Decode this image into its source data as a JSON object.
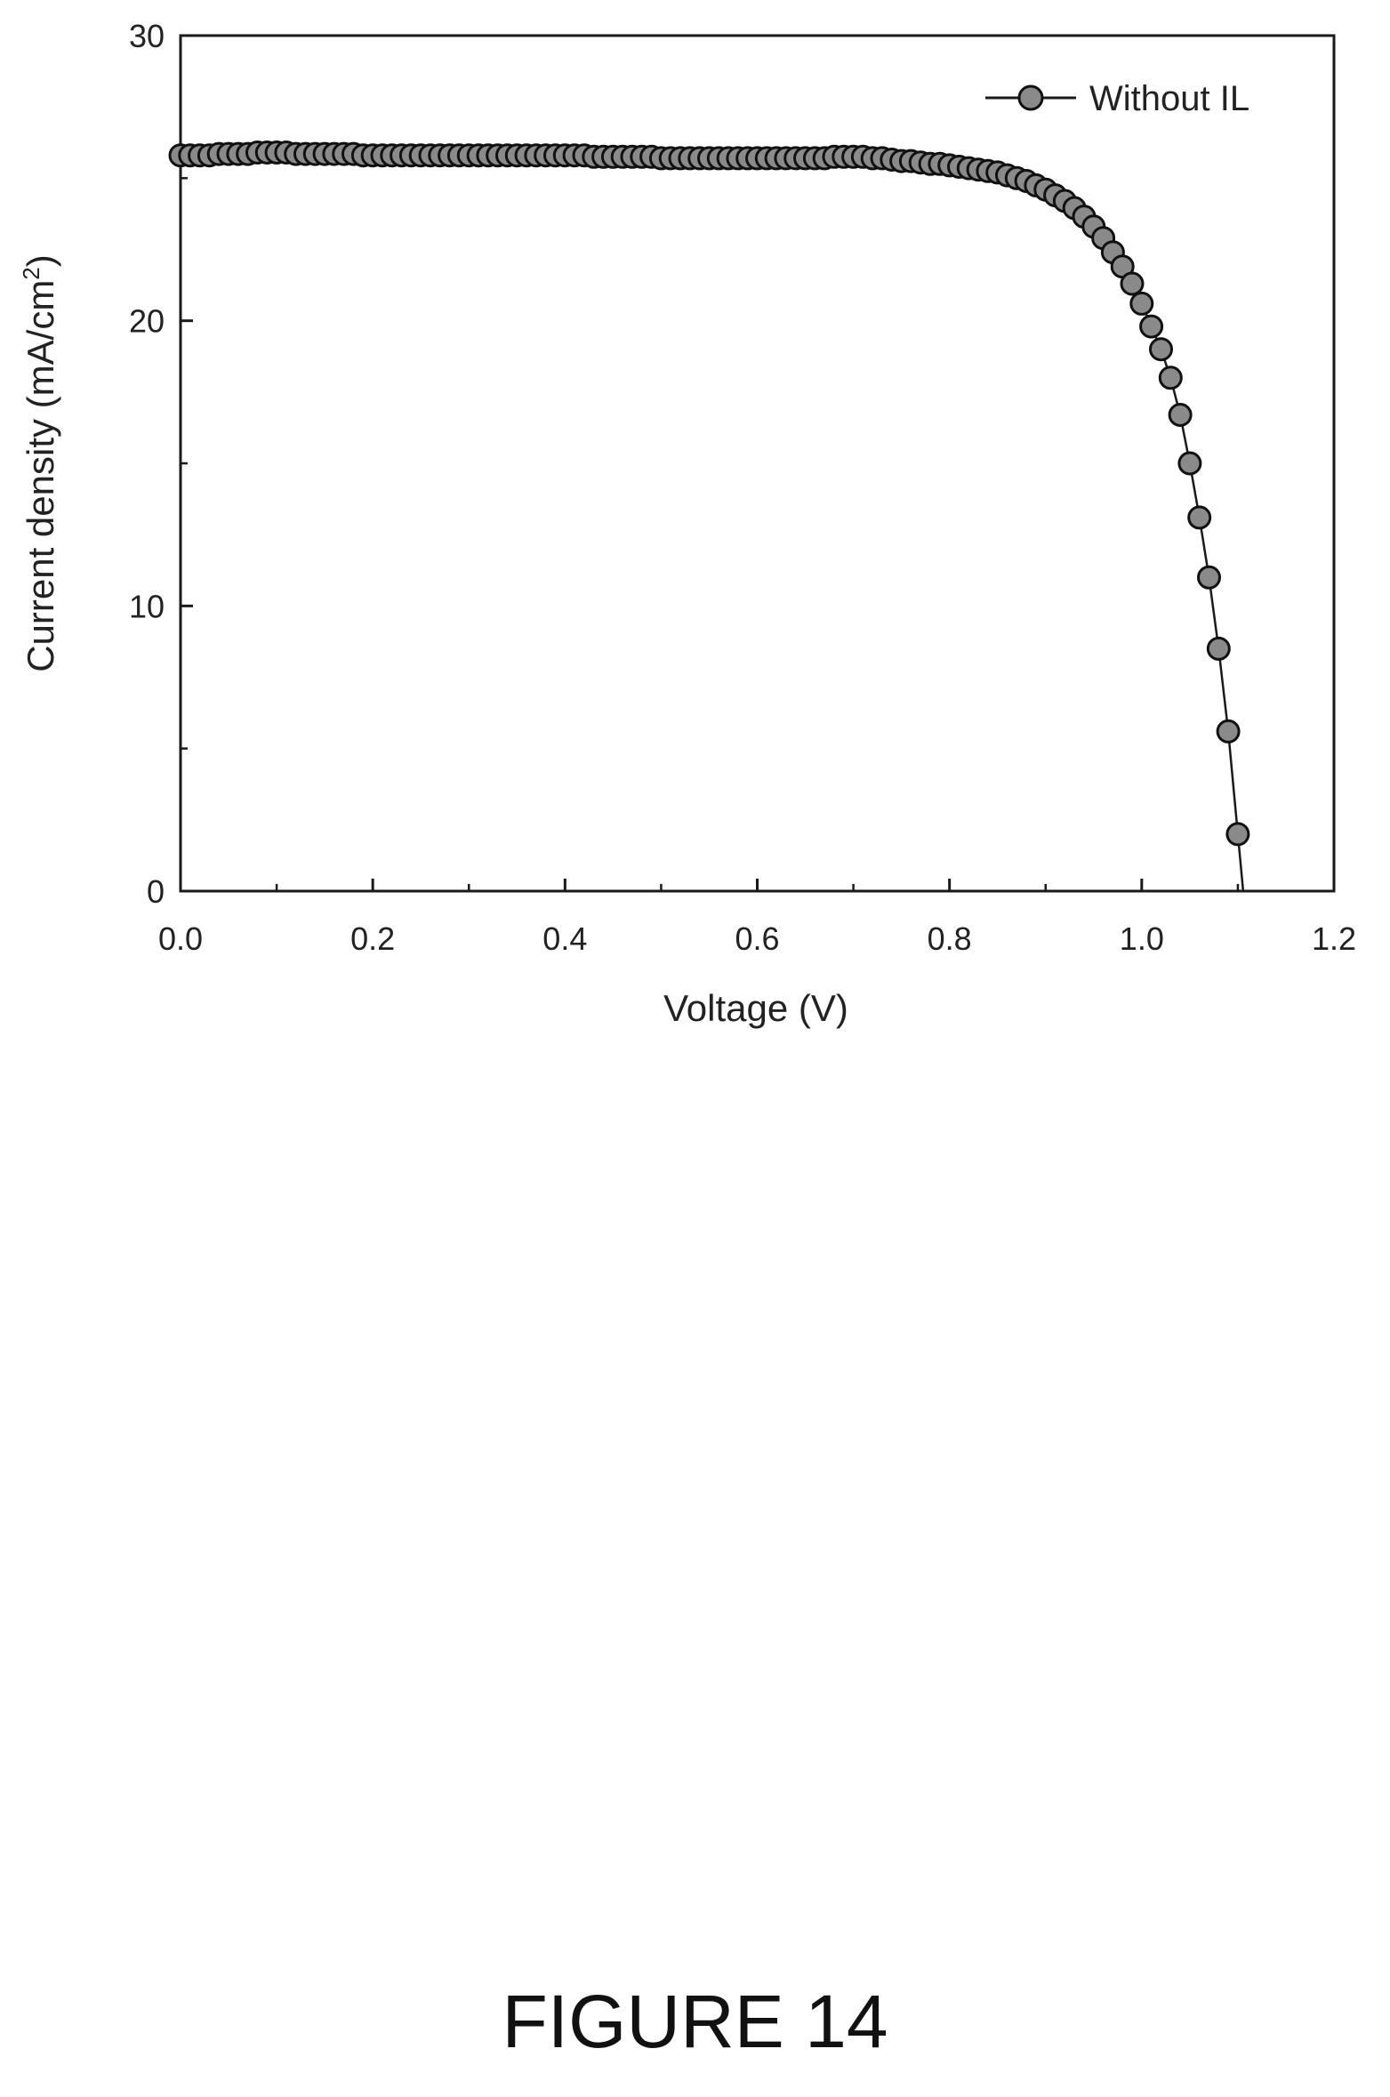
{
  "figure_label": "FIGURE 14",
  "chart_data": {
    "type": "scatter",
    "xlabel": "Voltage (V)",
    "ylabel": "Current density (mA/cm",
    "ylabel_sup": "2",
    "ylabel_close": ")",
    "xlim": [
      0,
      1.2
    ],
    "ylim": [
      0,
      30
    ],
    "xticks": [
      "0.0",
      "0.2",
      "0.4",
      "0.6",
      "0.8",
      "1.0",
      "1.2"
    ],
    "yticks": [
      "0",
      "10",
      "20",
      "30"
    ],
    "legend_position": "top-right",
    "grid": false,
    "series": [
      {
        "name": "Without IL",
        "marker": "circle",
        "line": true,
        "x": [
          0.0,
          0.01,
          0.02,
          0.03,
          0.04,
          0.05,
          0.06,
          0.07,
          0.08,
          0.09,
          0.1,
          0.11,
          0.12,
          0.13,
          0.14,
          0.15,
          0.16,
          0.17,
          0.18,
          0.19,
          0.2,
          0.21,
          0.22,
          0.23,
          0.24,
          0.25,
          0.26,
          0.27,
          0.28,
          0.29,
          0.3,
          0.31,
          0.32,
          0.33,
          0.34,
          0.35,
          0.36,
          0.37,
          0.38,
          0.39,
          0.4,
          0.41,
          0.42,
          0.43,
          0.44,
          0.45,
          0.46,
          0.47,
          0.48,
          0.49,
          0.5,
          0.51,
          0.52,
          0.53,
          0.54,
          0.55,
          0.56,
          0.57,
          0.58,
          0.59,
          0.6,
          0.61,
          0.62,
          0.63,
          0.64,
          0.65,
          0.66,
          0.67,
          0.68,
          0.69,
          0.7,
          0.71,
          0.72,
          0.73,
          0.74,
          0.75,
          0.76,
          0.77,
          0.78,
          0.79,
          0.8,
          0.81,
          0.82,
          0.83,
          0.84,
          0.85,
          0.86,
          0.87,
          0.88,
          0.89,
          0.9,
          0.91,
          0.92,
          0.93,
          0.94,
          0.95,
          0.96,
          0.97,
          0.98,
          0.99,
          1.0,
          1.01,
          1.02,
          1.03,
          1.04,
          1.05,
          1.06,
          1.07,
          1.08,
          1.09,
          1.1
        ],
        "y": [
          25.8,
          25.8,
          25.8,
          25.8,
          25.85,
          25.85,
          25.85,
          25.85,
          25.9,
          25.9,
          25.9,
          25.9,
          25.85,
          25.85,
          25.85,
          25.85,
          25.85,
          25.85,
          25.85,
          25.8,
          25.8,
          25.8,
          25.8,
          25.8,
          25.8,
          25.8,
          25.8,
          25.8,
          25.8,
          25.8,
          25.8,
          25.8,
          25.8,
          25.8,
          25.8,
          25.8,
          25.8,
          25.8,
          25.8,
          25.8,
          25.8,
          25.8,
          25.8,
          25.75,
          25.75,
          25.75,
          25.75,
          25.75,
          25.75,
          25.75,
          25.7,
          25.7,
          25.7,
          25.7,
          25.7,
          25.7,
          25.7,
          25.7,
          25.7,
          25.7,
          25.7,
          25.7,
          25.7,
          25.7,
          25.7,
          25.7,
          25.7,
          25.7,
          25.75,
          25.75,
          25.75,
          25.75,
          25.7,
          25.7,
          25.65,
          25.6,
          25.6,
          25.55,
          25.5,
          25.5,
          25.45,
          25.4,
          25.35,
          25.3,
          25.25,
          25.2,
          25.1,
          25.0,
          24.9,
          24.75,
          24.6,
          24.4,
          24.2,
          23.95,
          23.65,
          23.3,
          22.9,
          22.4,
          21.9,
          21.3,
          20.6,
          19.8,
          19.0,
          18.0,
          16.7,
          15.0,
          13.1,
          11.0,
          8.5,
          5.6,
          2.0
        ]
      }
    ]
  }
}
